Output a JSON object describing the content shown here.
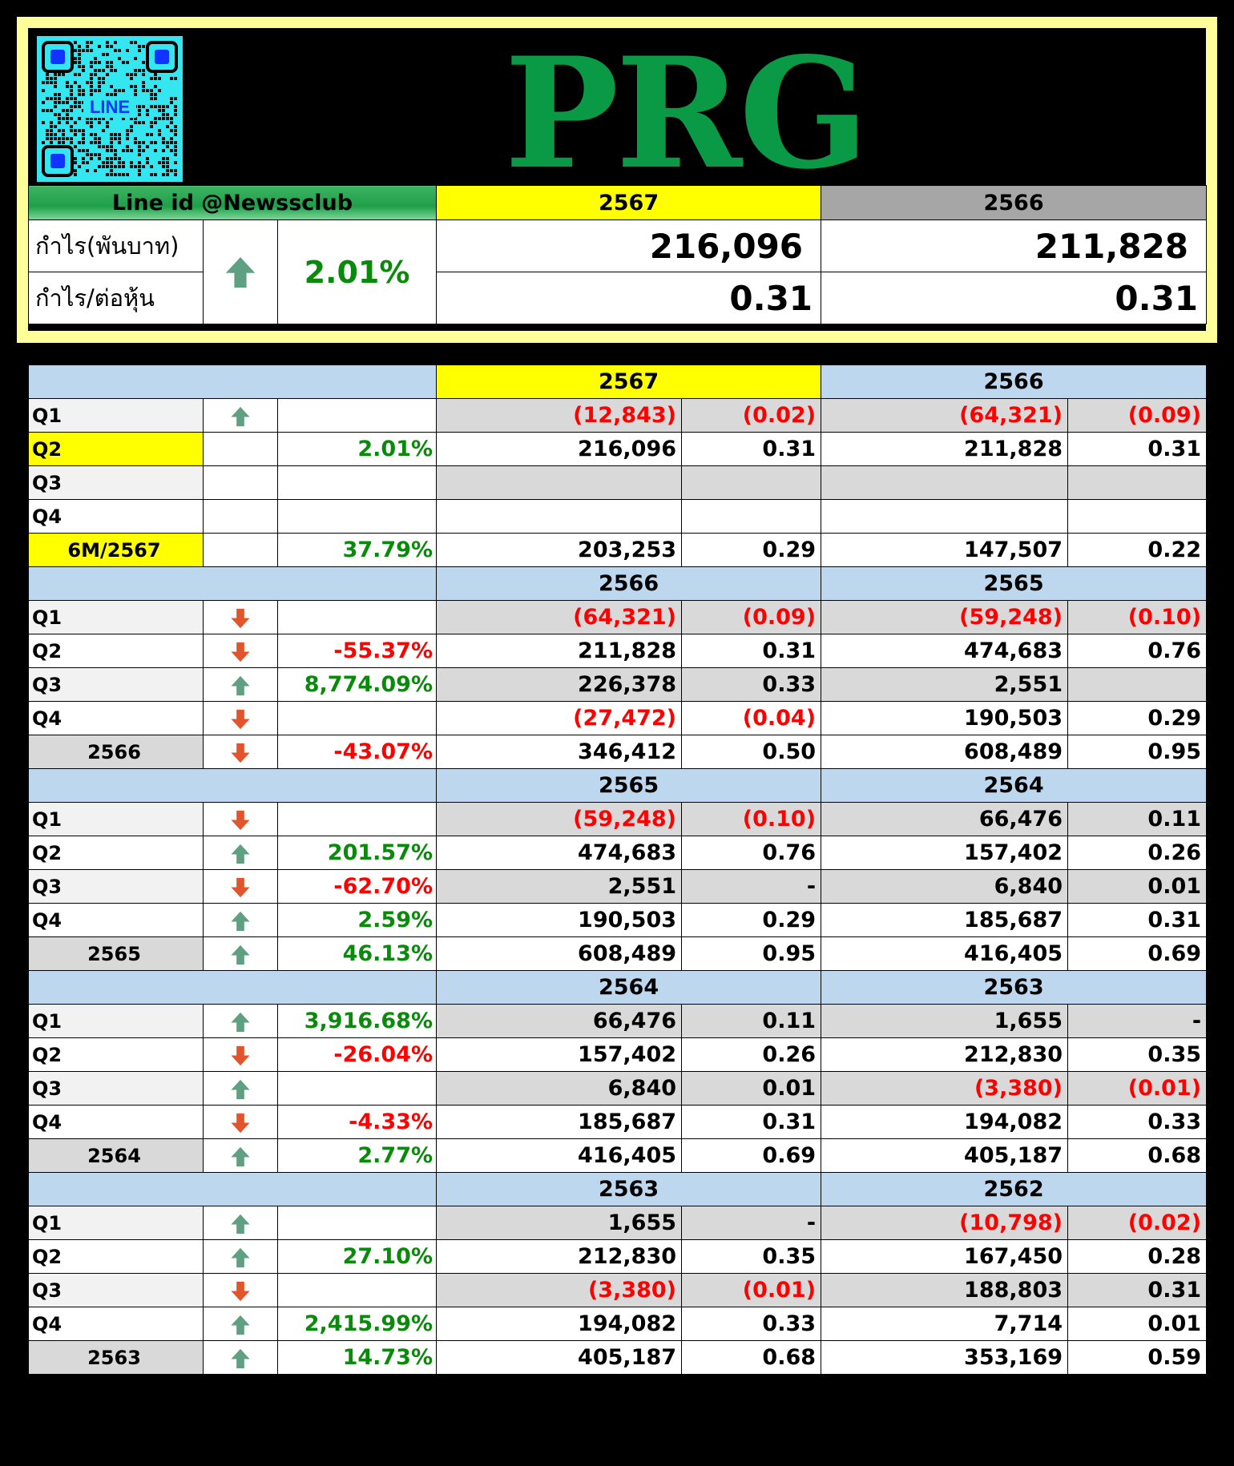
{
  "header": {
    "ticker": "PRG",
    "qr_label": "LINE",
    "line_id": "Line id @Newssclub",
    "year_current": "2567",
    "year_previous": "2566",
    "profit_label": "กำไร(พันบาท)",
    "eps_label": "กำไร/ต่อหุ้น",
    "trend": "up",
    "change_pct": "2.01%",
    "profit_current": "216,096",
    "profit_previous": "211,828",
    "eps_current": "0.31",
    "eps_previous": "0.31"
  },
  "colors": {
    "up_arrow": "#5f9f82",
    "down_arrow": "#e2552c",
    "positive": "#0a8a0a",
    "negative": "#ff0000",
    "ticker": "#0a9a45",
    "highlight": "#ffff00",
    "section_header": "#bdd7ee"
  },
  "sections": [
    {
      "year_a": "2567",
      "year_b": "2566",
      "year_a_highlight": true,
      "rows": [
        {
          "label": "Q1",
          "arrow": "up",
          "pct": "",
          "a_profit": "(12,843)",
          "a_eps": "(0.02)",
          "b_profit": "(64,321)",
          "b_eps": "(0.09)"
        },
        {
          "label": "Q2",
          "arrow": "",
          "pct": "2.01%",
          "a_profit": "216,096",
          "a_eps": "0.31",
          "b_profit": "211,828",
          "b_eps": "0.31",
          "label_highlight": true
        },
        {
          "label": "Q3",
          "arrow": "",
          "pct": "",
          "a_profit": "",
          "a_eps": "",
          "b_profit": "",
          "b_eps": ""
        },
        {
          "label": "Q4",
          "arrow": "",
          "pct": "",
          "a_profit": "",
          "a_eps": "",
          "b_profit": "",
          "b_eps": ""
        },
        {
          "label": "6M/2567",
          "arrow": "",
          "pct": "37.79%",
          "a_profit": "203,253",
          "a_eps": "0.29",
          "b_profit": "147,507",
          "b_eps": "0.22",
          "total": true,
          "label_highlight": true
        }
      ]
    },
    {
      "year_a": "2566",
      "year_b": "2565",
      "rows": [
        {
          "label": "Q1",
          "arrow": "down",
          "pct": "",
          "a_profit": "(64,321)",
          "a_eps": "(0.09)",
          "b_profit": "(59,248)",
          "b_eps": "(0.10)"
        },
        {
          "label": "Q2",
          "arrow": "down",
          "pct": "-55.37%",
          "a_profit": "211,828",
          "a_eps": "0.31",
          "b_profit": "474,683",
          "b_eps": "0.76"
        },
        {
          "label": "Q3",
          "arrow": "up",
          "pct": "8,774.09%",
          "a_profit": "226,378",
          "a_eps": "0.33",
          "b_profit": "2,551",
          "b_eps": ""
        },
        {
          "label": "Q4",
          "arrow": "down",
          "pct": "",
          "a_profit": "(27,472)",
          "a_eps": "(0.04)",
          "b_profit": "190,503",
          "b_eps": "0.29"
        },
        {
          "label": "2566",
          "arrow": "down",
          "pct": "-43.07%",
          "a_profit": "346,412",
          "a_eps": "0.50",
          "b_profit": "608,489",
          "b_eps": "0.95",
          "total": true
        }
      ]
    },
    {
      "year_a": "2565",
      "year_b": "2564",
      "rows": [
        {
          "label": "Q1",
          "arrow": "down",
          "pct": "",
          "a_profit": "(59,248)",
          "a_eps": "(0.10)",
          "b_profit": "66,476",
          "b_eps": "0.11"
        },
        {
          "label": "Q2",
          "arrow": "up",
          "pct": "201.57%",
          "a_profit": "474,683",
          "a_eps": "0.76",
          "b_profit": "157,402",
          "b_eps": "0.26"
        },
        {
          "label": "Q3",
          "arrow": "down",
          "pct": "-62.70%",
          "a_profit": "2,551",
          "a_eps": "-",
          "b_profit": "6,840",
          "b_eps": "0.01"
        },
        {
          "label": "Q4",
          "arrow": "up",
          "pct": "2.59%",
          "a_profit": "190,503",
          "a_eps": "0.29",
          "b_profit": "185,687",
          "b_eps": "0.31"
        },
        {
          "label": "2565",
          "arrow": "up",
          "pct": "46.13%",
          "a_profit": "608,489",
          "a_eps": "0.95",
          "b_profit": "416,405",
          "b_eps": "0.69",
          "total": true
        }
      ]
    },
    {
      "year_a": "2564",
      "year_b": "2563",
      "rows": [
        {
          "label": "Q1",
          "arrow": "up",
          "pct": "3,916.68%",
          "a_profit": "66,476",
          "a_eps": "0.11",
          "b_profit": "1,655",
          "b_eps": "-"
        },
        {
          "label": "Q2",
          "arrow": "down",
          "pct": "-26.04%",
          "a_profit": "157,402",
          "a_eps": "0.26",
          "b_profit": "212,830",
          "b_eps": "0.35"
        },
        {
          "label": "Q3",
          "arrow": "up",
          "pct": "",
          "a_profit": "6,840",
          "a_eps": "0.01",
          "b_profit": "(3,380)",
          "b_eps": "(0.01)"
        },
        {
          "label": "Q4",
          "arrow": "down",
          "pct": "-4.33%",
          "a_profit": "185,687",
          "a_eps": "0.31",
          "b_profit": "194,082",
          "b_eps": "0.33"
        },
        {
          "label": "2564",
          "arrow": "up",
          "pct": "2.77%",
          "a_profit": "416,405",
          "a_eps": "0.69",
          "b_profit": "405,187",
          "b_eps": "0.68",
          "total": true
        }
      ]
    },
    {
      "year_a": "2563",
      "year_b": "2562",
      "rows": [
        {
          "label": "Q1",
          "arrow": "up",
          "pct": "",
          "a_profit": "1,655",
          "a_eps": "-",
          "b_profit": "(10,798)",
          "b_eps": "(0.02)"
        },
        {
          "label": "Q2",
          "arrow": "up",
          "pct": "27.10%",
          "a_profit": "212,830",
          "a_eps": "0.35",
          "b_profit": "167,450",
          "b_eps": "0.28"
        },
        {
          "label": "Q3",
          "arrow": "down",
          "pct": "",
          "a_profit": "(3,380)",
          "a_eps": "(0.01)",
          "b_profit": "188,803",
          "b_eps": "0.31"
        },
        {
          "label": "Q4",
          "arrow": "up",
          "pct": "2,415.99%",
          "a_profit": "194,082",
          "a_eps": "0.33",
          "b_profit": "7,714",
          "b_eps": "0.01"
        },
        {
          "label": "2563",
          "arrow": "up",
          "pct": "14.73%",
          "a_profit": "405,187",
          "a_eps": "0.68",
          "b_profit": "353,169",
          "b_eps": "0.59",
          "total": true
        }
      ]
    }
  ]
}
